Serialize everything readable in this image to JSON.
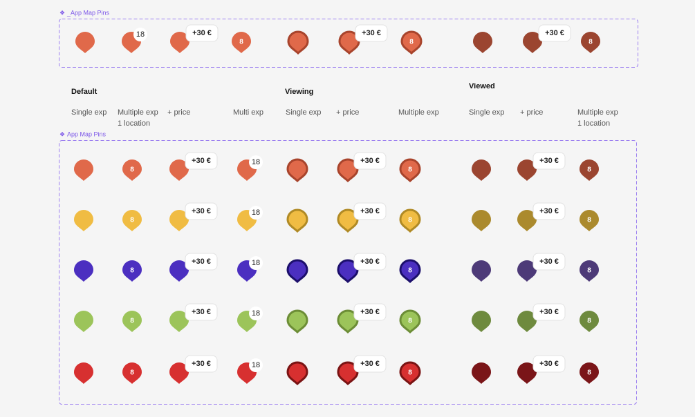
{
  "frames": [
    {
      "label": "_App Map Pins"
    },
    {
      "label": "App Map Pins"
    }
  ],
  "groups": [
    {
      "title": "Default"
    },
    {
      "title": "Viewing"
    },
    {
      "title": "Viewed"
    }
  ],
  "columns": [
    [
      "Single exp"
    ],
    [
      "Multiple exp",
      "1 location"
    ],
    [
      "+ price"
    ],
    [
      "Multi exp"
    ],
    [
      "Single exp"
    ],
    [
      "+ price"
    ],
    [
      "Multiple exp"
    ],
    [
      "Single exp"
    ],
    [
      "+ price"
    ],
    [
      "Multiple exp",
      "1 location"
    ]
  ],
  "count": "18",
  "price": "+30 €",
  "number": "8",
  "rows": [
    {
      "color": "#e0694a",
      "border": "#a8442c",
      "viewed": "#9b4530"
    },
    {
      "color": "#f0bc43",
      "border": "#b08a25",
      "viewed": "#ab8a2d"
    },
    {
      "color": "#4b2fc0",
      "border": "#1c0f6b",
      "viewed": "#4d3a78"
    },
    {
      "color": "#9cc45a",
      "border": "#6c8d36",
      "viewed": "#6e8a3e"
    },
    {
      "color": "#d73030",
      "border": "#7a1414",
      "viewed": "#7a1518"
    }
  ]
}
